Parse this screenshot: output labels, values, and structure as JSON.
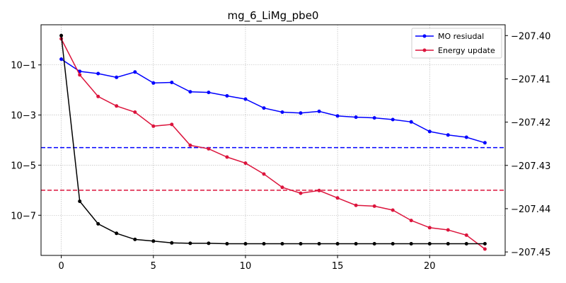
{
  "chart_data": {
    "type": "line",
    "title": "mg_6_LiMg_pbe0",
    "xlabel": "",
    "ylabel": "",
    "y2label": "",
    "grid": true,
    "legend_position": "top-right",
    "x": [
      0,
      1,
      2,
      3,
      4,
      5,
      6,
      7,
      8,
      9,
      10,
      11,
      12,
      13,
      14,
      15,
      16,
      17,
      18,
      19,
      20,
      21,
      22,
      23
    ],
    "xlim": [
      -1.1,
      24.1
    ],
    "xticks": [
      0,
      5,
      10,
      15,
      20
    ],
    "ylim_log": [
      2.5e-09,
      4.0
    ],
    "y_scale": "log",
    "yticks": [
      {
        "value": 0.1,
        "label": "10−1"
      },
      {
        "value": 0.001,
        "label": "10−3"
      },
      {
        "value": 1e-05,
        "label": "10−5"
      },
      {
        "value": 1e-07,
        "label": "10−7"
      }
    ],
    "y2lim": [
      -207.4508,
      -207.3975
    ],
    "y2ticks": [
      {
        "value": -207.4,
        "label": "−207.40"
      },
      {
        "value": -207.41,
        "label": "−207.41"
      },
      {
        "value": -207.42,
        "label": "−207.42"
      },
      {
        "value": -207.43,
        "label": "−207.43"
      },
      {
        "value": -207.44,
        "label": "−207.44"
      },
      {
        "value": -207.45,
        "label": "−207.45"
      }
    ],
    "series": [
      {
        "name": "MO resiudal",
        "color": "#0000ff",
        "axis": "left",
        "values": [
          0.17,
          0.055,
          0.045,
          0.032,
          0.052,
          0.019,
          0.02,
          0.0085,
          0.008,
          0.0058,
          0.0043,
          0.0019,
          0.0013,
          0.0012,
          0.0014,
          0.00092,
          0.00082,
          0.00077,
          0.00066,
          0.00053,
          0.00022,
          0.00016,
          0.00013,
          7.8e-05
        ]
      },
      {
        "name": "Energy update",
        "color": "#dc143c",
        "axis": "left",
        "values": [
          1.1,
          0.04,
          0.0055,
          0.0023,
          0.0013,
          0.00036,
          0.00042,
          6.2e-05,
          4.5e-05,
          2.1e-05,
          1.2e-05,
          4.4e-06,
          1.3e-06,
          7.6e-07,
          9.7e-07,
          4.9e-07,
          2.5e-07,
          2.3e-07,
          1.6e-07,
          6.2e-08,
          3.2e-08,
          2.6e-08,
          1.6e-08,
          4.5e-09
        ]
      },
      {
        "name": "",
        "color": "#000000",
        "axis": "right",
        "values": [
          -207.4,
          -207.4383,
          -207.4435,
          -207.4457,
          -207.4471,
          -207.4475,
          -207.4479,
          -207.448,
          -207.448,
          -207.4481,
          -207.4481,
          -207.4481,
          -207.4481,
          -207.4481,
          -207.4481,
          -207.4481,
          -207.4481,
          -207.4481,
          -207.4481,
          -207.4481,
          -207.4481,
          -207.4481,
          -207.4481,
          -207.4481
        ]
      }
    ],
    "hlines": [
      {
        "value": 5e-05,
        "color": "#0000ff",
        "style": "dashed"
      },
      {
        "value": 1e-06,
        "color": "#dc143c",
        "style": "dashed"
      }
    ]
  }
}
